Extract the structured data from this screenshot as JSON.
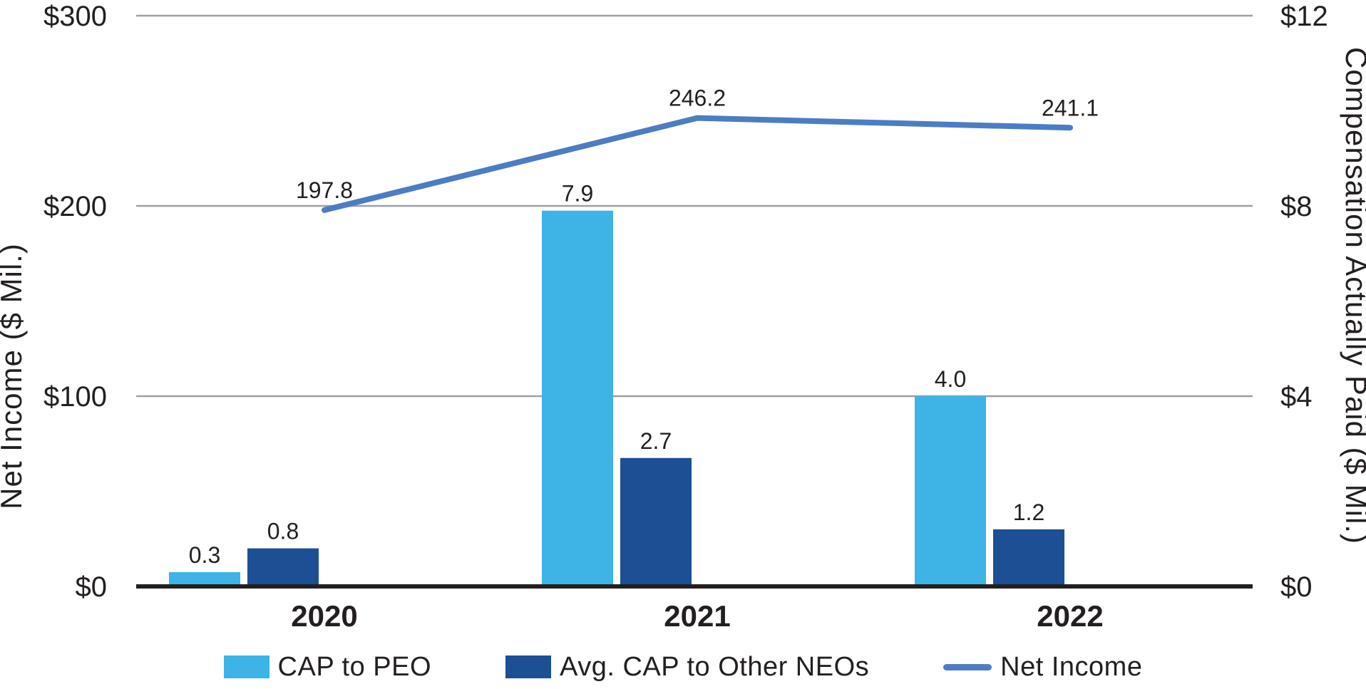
{
  "chart_data": {
    "type": "combo-bar-line",
    "title": "",
    "categories": [
      "2020",
      "2021",
      "2022"
    ],
    "series": [
      {
        "name": "CAP to PEO",
        "type": "bar",
        "axis": "right",
        "color": "#3DB4E5",
        "values": [
          0.3,
          7.9,
          4.0
        ]
      },
      {
        "name": "Avg. CAP to Other NEOs",
        "type": "bar",
        "axis": "right",
        "color": "#1C4F93",
        "values": [
          0.8,
          2.7,
          1.2
        ]
      },
      {
        "name": "Net Income",
        "type": "line",
        "axis": "left",
        "color": "#4C7DC4",
        "values": [
          197.8,
          246.2,
          241.1
        ]
      }
    ],
    "left_axis": {
      "title": "Net Income ($ Mil.)",
      "ticks": [
        "$0",
        "$100",
        "$200",
        "$300"
      ],
      "tick_values": [
        0,
        100,
        200,
        300
      ],
      "min": 0,
      "max": 300
    },
    "right_axis": {
      "title": "Compensation Actually Paid ($ Mil.)",
      "ticks": [
        "$0",
        "$4",
        "$8",
        "$12"
      ],
      "tick_values": [
        0,
        4,
        8,
        12
      ],
      "min": 0,
      "max": 12
    },
    "data_labels": true,
    "grid": true,
    "legend_position": "bottom"
  },
  "colors": {
    "bar_light_blue": "#3DB4E5",
    "bar_dark_blue": "#1C4F93",
    "line_blue": "#4C7DC4",
    "gridline_gray": "#9D9FA2",
    "axis_black": "#231F20",
    "text": "#231F20",
    "background": "#FFFFFF"
  }
}
